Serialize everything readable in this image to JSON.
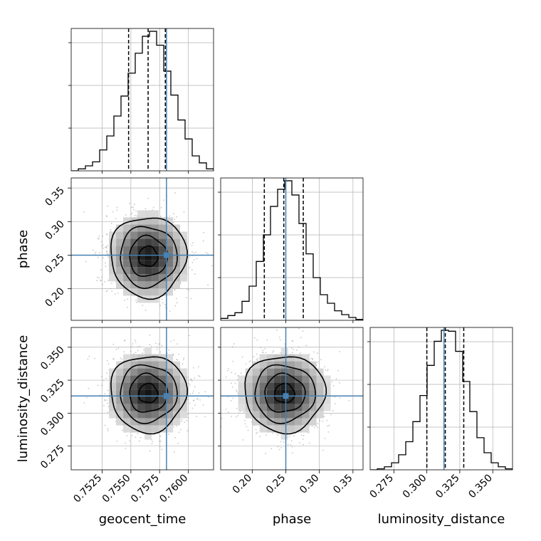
{
  "chart_data": {
    "type": "corner",
    "parameters": [
      {
        "name": "geocent_time",
        "label": "geocent_time",
        "range": [
          0.7498,
          0.7622
        ],
        "ticks": [
          0.7525,
          0.755,
          0.7575,
          0.76
        ],
        "tick_labels": [
          "0.7525",
          "0.7550",
          "0.7575",
          "0.7600"
        ]
      },
      {
        "name": "phase",
        "label": "phase",
        "range": [
          0.153,
          0.365
        ],
        "ticks": [
          0.2,
          0.25,
          0.3,
          0.35
        ],
        "tick_labels": [
          "0.20",
          "0.25",
          "0.30",
          "0.35"
        ]
      },
      {
        "name": "luminosity_distance",
        "label": "luminosity_distance",
        "range": [
          0.257,
          0.365
        ],
        "ticks": [
          0.275,
          0.3,
          0.325,
          0.35
        ],
        "tick_labels": [
          "0.275",
          "0.300",
          "0.325",
          "0.350"
        ]
      }
    ],
    "truths": [
      0.7581,
      0.25,
      0.313
    ],
    "truth_color": "#4682b4",
    "quantiles": [
      [
        0.7548,
        0.7565,
        0.758
      ],
      [
        0.218,
        0.247,
        0.276
      ],
      [
        0.3,
        0.314,
        0.328
      ]
    ],
    "histograms": [
      {
        "bin_edges_range": [
          0.7498,
          0.7622
        ],
        "counts": [
          0,
          2,
          5,
          9,
          21,
          35,
          55,
          75,
          98,
          118,
          135,
          140,
          126,
          100,
          76,
          51,
          32,
          15,
          8,
          2
        ]
      },
      {
        "bin_edges_range": [
          0.153,
          0.365
        ],
        "counts": [
          2,
          5,
          8,
          20,
          36,
          62,
          90,
          120,
          138,
          147,
          132,
          102,
          70,
          45,
          27,
          18,
          10,
          6,
          3,
          1
        ]
      },
      {
        "bin_edges_range": [
          0.257,
          0.365
        ],
        "counts": [
          0,
          1,
          3,
          7,
          15,
          28,
          48,
          74,
          104,
          128,
          139,
          138,
          118,
          88,
          58,
          32,
          17,
          7,
          3,
          1
        ]
      }
    ],
    "pairs": [
      {
        "x": "geocent_time",
        "y": "phase",
        "center": [
          0.7565,
          0.248
        ],
        "sigma": [
          0.00165,
          0.03
        ]
      },
      {
        "x": "geocent_time",
        "y": "luminosity_distance",
        "center": [
          0.7565,
          0.315
        ],
        "sigma": [
          0.00165,
          0.0145
        ]
      },
      {
        "x": "phase",
        "y": "luminosity_distance",
        "center": [
          0.248,
          0.315
        ],
        "sigma": [
          0.03,
          0.0145
        ]
      }
    ],
    "grid": true,
    "colors": {
      "samples": "#000000",
      "scatter": "#8a8a8a"
    }
  }
}
